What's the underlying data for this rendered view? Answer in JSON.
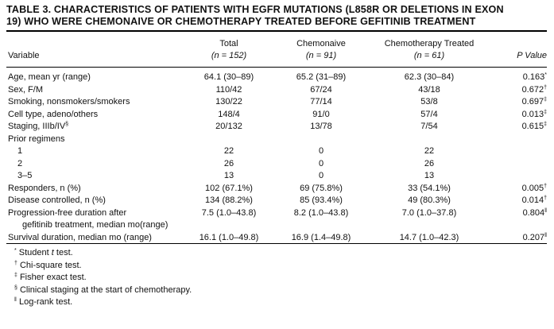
{
  "title_line1": "TABLE 3. CHARACTERISTICS OF PATIENTS WITH EGFR MUTATIONS (L858R OR DELETIONS IN EXON",
  "title_line2": "19) WHO WERE CHEMONAIVE OR CHEMOTHERAPY TREATED BEFORE GEFITINIB TREATMENT",
  "header": {
    "variable": "Variable",
    "total": "Total",
    "total_n": "(n = 152)",
    "chemonaive": "Chemonaive",
    "chemonaive_n": "(n = 91)",
    "treated": "Chemotherapy Treated",
    "treated_n": "(n = 61)",
    "pvalue": "P Value"
  },
  "rows": [
    {
      "label": "Age, mean yr (range)",
      "total": "64.1 (30–89)",
      "naive": "65.2 (31–89)",
      "treated": "62.3 (30–84)",
      "p": "0.163",
      "p_mark": "*"
    },
    {
      "label": "Sex, F/M",
      "total": "110/42",
      "naive": "67/24",
      "treated": "43/18",
      "p": "0.672",
      "p_mark": "†"
    },
    {
      "label": "Smoking, nonsmokers/smokers",
      "total": "130/22",
      "naive": "77/14",
      "treated": "53/8",
      "p": "0.697",
      "p_mark": "‡"
    },
    {
      "label": "Cell type, adeno/others",
      "total": "148/4",
      "naive": "91/0",
      "treated": "57/4",
      "p": "0.013",
      "p_mark": "‡"
    },
    {
      "label": "Staging, IIIb/IV",
      "label_mark": "§",
      "total": "20/132",
      "naive": "13/78",
      "treated": "7/54",
      "p": "0.615",
      "p_mark": "‡"
    },
    {
      "label": "Prior regimens",
      "total": "",
      "naive": "",
      "treated": "",
      "p": "",
      "p_mark": ""
    },
    {
      "label": "1",
      "indent": 1,
      "total": "22",
      "naive": "0",
      "treated": "22",
      "p": "",
      "p_mark": ""
    },
    {
      "label": "2",
      "indent": 1,
      "total": "26",
      "naive": "0",
      "treated": "26",
      "p": "",
      "p_mark": ""
    },
    {
      "label": "3–5",
      "indent": 1,
      "total": "13",
      "naive": "0",
      "treated": "13",
      "p": "",
      "p_mark": ""
    },
    {
      "label": "Responders, n (%)",
      "total": "102 (67.1%)",
      "naive": "69 (75.8%)",
      "treated": "33 (54.1%)",
      "p": "0.005",
      "p_mark": "†"
    },
    {
      "label": "Disease controlled, n (%)",
      "total": "134 (88.2%)",
      "naive": "85 (93.4%)",
      "treated": "49 (80.3%)",
      "p": "0.014",
      "p_mark": "†"
    },
    {
      "label": "Progression-free duration after",
      "total": "7.5 (1.0–43.8)",
      "naive": "8.2 (1.0–43.8)",
      "treated": "7.0 (1.0–37.8)",
      "p": "0.804",
      "p_mark": "‖"
    },
    {
      "label": "gefitinib treatment, median mo(range)",
      "indent": 2,
      "total": "",
      "naive": "",
      "treated": "",
      "p": "",
      "p_mark": ""
    },
    {
      "label": "Survival duration, median mo (range)",
      "total": "16.1 (1.0–49.8)",
      "naive": "16.9 (1.4–49.8)",
      "treated": "14.7 (1.0–42.3)",
      "p": "0.207",
      "p_mark": "‖"
    }
  ],
  "footnotes": [
    {
      "mark": "*",
      "text": "Student ",
      "italic": "t",
      "rest": " test."
    },
    {
      "mark": "†",
      "text": "Chi-square test.",
      "italic": "",
      "rest": ""
    },
    {
      "mark": "‡",
      "text": "Fisher exact test.",
      "italic": "",
      "rest": ""
    },
    {
      "mark": "§",
      "text": "Clinical staging at the start of chemotherapy.",
      "italic": "",
      "rest": ""
    },
    {
      "mark": "‖",
      "text": "Log-rank test.",
      "italic": "",
      "rest": ""
    }
  ]
}
